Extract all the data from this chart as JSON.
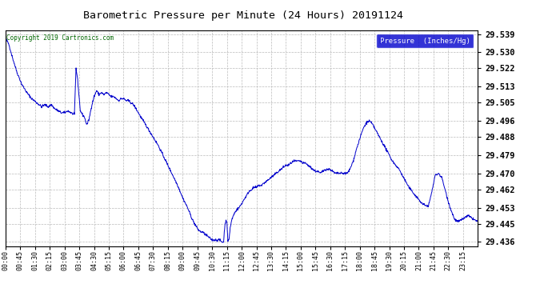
{
  "title": "Barometric Pressure per Minute (24 Hours) 20191124",
  "copyright": "Copyright 2019 Cartronics.com",
  "legend_label": "Pressure  (Inches/Hg)",
  "line_color": "#0000cc",
  "background_color": "#ffffff",
  "grid_color": "#aaaaaa",
  "ylim": [
    29.434,
    29.541
  ],
  "yticks": [
    29.436,
    29.445,
    29.453,
    29.462,
    29.47,
    29.479,
    29.488,
    29.496,
    29.505,
    29.513,
    29.522,
    29.53,
    29.539
  ],
  "xtick_labels": [
    "00:00",
    "00:45",
    "01:30",
    "02:15",
    "03:00",
    "03:45",
    "04:30",
    "05:15",
    "06:00",
    "06:45",
    "07:30",
    "08:15",
    "09:00",
    "09:45",
    "10:30",
    "11:15",
    "12:00",
    "12:45",
    "13:30",
    "14:15",
    "15:00",
    "15:45",
    "16:30",
    "17:15",
    "18:00",
    "18:45",
    "19:30",
    "20:15",
    "21:00",
    "21:45",
    "22:30",
    "23:15"
  ],
  "font_family": "monospace"
}
